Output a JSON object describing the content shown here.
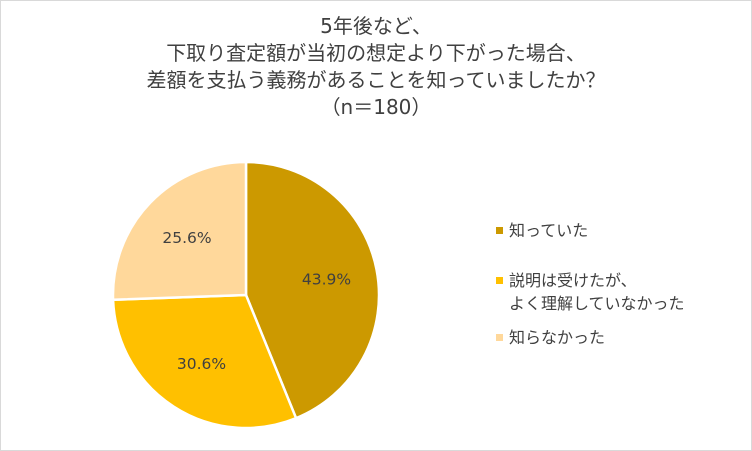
{
  "chart_data": {
    "type": "pie",
    "title_lines": [
      "5年後など、",
      "下取り査定額が当初の想定より下がった場合、",
      "差額を支払う義務があることを知っていましたか？",
      "（n＝180）"
    ],
    "slices": [
      {
        "label_lines": [
          "知っていた"
        ],
        "value": 43.9,
        "display": "43.9%",
        "color": "#cc9900"
      },
      {
        "label_lines": [
          "説明は受けたが、",
          "よく理解していなかった"
        ],
        "value": 30.6,
        "display": "30.6%",
        "color": "#ffc000"
      },
      {
        "label_lines": [
          "知らなかった"
        ],
        "value": 25.6,
        "display": "25.6%",
        "color": "#ffd89b"
      }
    ],
    "start_direction": "top",
    "direction": "clockwise",
    "legend_position": "right"
  }
}
